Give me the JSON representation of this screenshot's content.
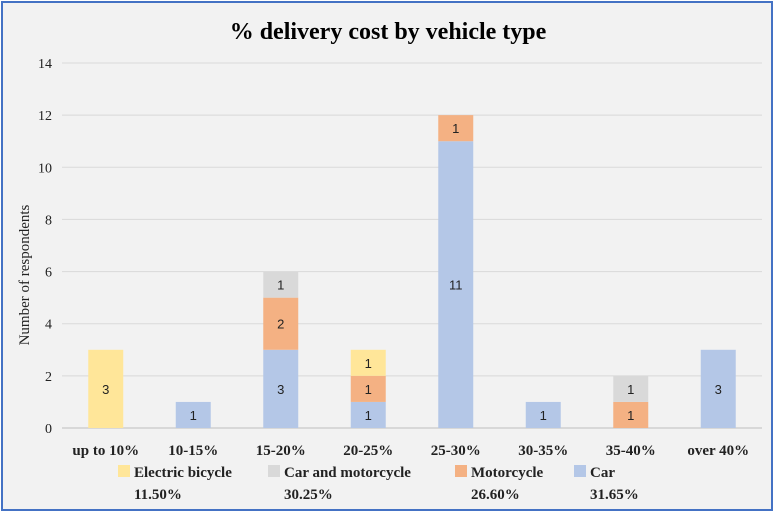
{
  "chart_data": {
    "type": "bar",
    "stacked": true,
    "title": "% delivery cost by vehicle type",
    "xlabel": "",
    "ylabel": "Number of respondents",
    "ylim": [
      0,
      14
    ],
    "yticks": [
      0,
      2,
      4,
      6,
      8,
      10,
      12,
      14
    ],
    "grid": true,
    "legend_position": "bottom",
    "categories": [
      "up to 10%",
      "10-15%",
      "15-20%",
      "20-25%",
      "25-30%",
      "30-35%",
      "35-40%",
      "over 40%"
    ],
    "series": [
      {
        "name": "Car",
        "legend_pct": "31.65%",
        "color": "#b4c7e7",
        "values": [
          0,
          1,
          3,
          1,
          11,
          1,
          0,
          3
        ]
      },
      {
        "name": "Motorcycle",
        "legend_pct": "26.60%",
        "color": "#f4b183",
        "values": [
          0,
          0,
          2,
          1,
          1,
          0,
          1,
          0
        ]
      },
      {
        "name": "Car and motorcycle",
        "legend_pct": "30.25%",
        "color": "#d9d9d9",
        "values": [
          0,
          0,
          1,
          0,
          0,
          0,
          1,
          0
        ]
      },
      {
        "name": "Electric bicycle",
        "legend_pct": "11.50%",
        "color": "#ffe699",
        "values": [
          3,
          0,
          0,
          1,
          0,
          0,
          0,
          0
        ]
      }
    ],
    "legend_order": [
      "Electric bicycle",
      "Car and motorcycle",
      "Motorcycle",
      "Car"
    ]
  }
}
